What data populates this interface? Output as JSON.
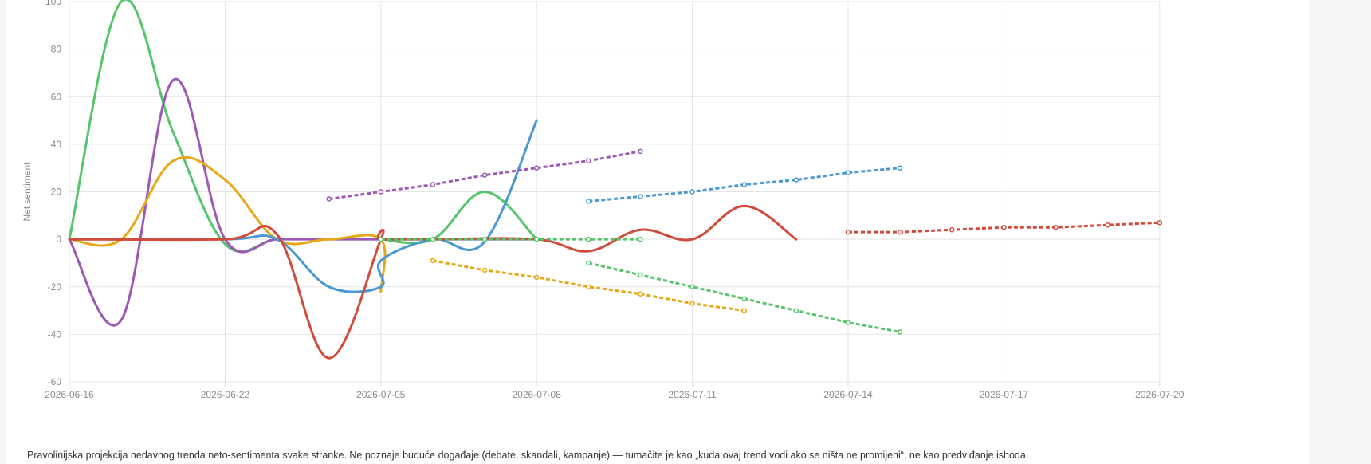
{
  "chart_data": {
    "type": "line",
    "title": "",
    "xlabel": "",
    "ylabel": "Net sentiment",
    "ylim": [
      -60,
      100
    ],
    "y_ticks": [
      -60,
      -40,
      -20,
      0,
      20,
      40,
      60,
      80,
      100
    ],
    "x_ticks": [
      "2026-06-16",
      "2026-06-22",
      "2026-07-05",
      "2026-07-08",
      "2026-07-11",
      "2026-07-14",
      "2026-07-17",
      "2026-07-20"
    ],
    "grid": true,
    "series": [
      {
        "color": "#55c46b",
        "style": "solid",
        "points": [
          [
            "2026-06-16",
            0
          ],
          [
            "2026-06-18",
            100
          ],
          [
            "2026-06-20",
            45
          ],
          [
            "2026-06-22",
            -2
          ],
          [
            "2026-06-23",
            0
          ],
          [
            "2026-06-24",
            0
          ],
          [
            "2026-06-25",
            0
          ],
          [
            "2026-07-05",
            0
          ],
          [
            "2026-07-06",
            0
          ],
          [
            "2026-07-07",
            20
          ],
          [
            "2026-07-08",
            0
          ]
        ]
      },
      {
        "color": "#9b59b6",
        "style": "solid",
        "points": [
          [
            "2026-06-16",
            0
          ],
          [
            "2026-06-18",
            -34
          ],
          [
            "2026-06-20",
            67
          ],
          [
            "2026-06-22",
            0
          ],
          [
            "2026-06-23",
            0
          ],
          [
            "2026-06-24",
            0
          ],
          [
            "2026-07-08",
            0
          ]
        ]
      },
      {
        "color": "#e6a817",
        "style": "solid",
        "points": [
          [
            "2026-06-16",
            0
          ],
          [
            "2026-06-18",
            0
          ],
          [
            "2026-06-20",
            33
          ],
          [
            "2026-06-22",
            25
          ],
          [
            "2026-06-23",
            0
          ],
          [
            "2026-06-24",
            0
          ],
          [
            "2026-06-25",
            0
          ],
          [
            "2026-07-05",
            -22
          ]
        ]
      },
      {
        "color": "#4a98d3",
        "style": "solid",
        "points": [
          [
            "2026-06-16",
            0
          ],
          [
            "2026-06-22",
            0
          ],
          [
            "2026-06-23",
            0
          ],
          [
            "2026-06-24",
            -20
          ],
          [
            "2026-06-25",
            -20
          ],
          [
            "2026-07-05",
            -9
          ],
          [
            "2026-07-06",
            0
          ],
          [
            "2026-07-07",
            -1
          ],
          [
            "2026-07-08",
            50
          ]
        ]
      },
      {
        "color": "#d14b3c",
        "style": "solid",
        "points": [
          [
            "2026-06-16",
            0
          ],
          [
            "2026-06-22",
            0
          ],
          [
            "2026-06-23",
            2
          ],
          [
            "2026-06-24",
            -50
          ],
          [
            "2026-06-25",
            0
          ],
          [
            "2026-07-05",
            0
          ],
          [
            "2026-07-06",
            0
          ],
          [
            "2026-07-08",
            0
          ],
          [
            "2026-07-09",
            -5
          ],
          [
            "2026-07-10",
            4
          ],
          [
            "2026-07-11",
            0
          ],
          [
            "2026-07-12",
            14
          ],
          [
            "2026-07-13",
            0
          ]
        ]
      },
      {
        "color": "#9b59b6",
        "style": "dashed",
        "points": [
          [
            "2026-06-24",
            17
          ],
          [
            "2026-07-05",
            20
          ],
          [
            "2026-07-06",
            23
          ],
          [
            "2026-07-07",
            27
          ],
          [
            "2026-07-08",
            30
          ],
          [
            "2026-07-09",
            33
          ],
          [
            "2026-07-10",
            37
          ]
        ]
      },
      {
        "color": "#e6a817",
        "style": "dashed",
        "points": [
          [
            "2026-07-06",
            -9
          ],
          [
            "2026-07-07",
            -13
          ],
          [
            "2026-07-08",
            -16
          ],
          [
            "2026-07-09",
            -20
          ],
          [
            "2026-07-10",
            -23
          ],
          [
            "2026-07-11",
            -27
          ],
          [
            "2026-07-12",
            -30
          ]
        ]
      },
      {
        "color": "#55c46b",
        "style": "dashed",
        "points": [
          [
            "2026-07-05",
            0
          ],
          [
            "2026-07-06",
            0
          ],
          [
            "2026-07-07",
            0
          ],
          [
            "2026-07-08",
            0
          ],
          [
            "2026-07-09",
            0
          ],
          [
            "2026-07-10",
            0
          ]
        ]
      },
      {
        "color": "#4a98d3",
        "style": "dashed",
        "points": [
          [
            "2026-07-09",
            16
          ],
          [
            "2026-07-10",
            18
          ],
          [
            "2026-07-11",
            20
          ],
          [
            "2026-07-12",
            23
          ],
          [
            "2026-07-13",
            25
          ],
          [
            "2026-07-14",
            28
          ],
          [
            "2026-07-15",
            30
          ]
        ]
      },
      {
        "color": "#55c46b",
        "style": "dashed",
        "points": [
          [
            "2026-07-09",
            -10
          ],
          [
            "2026-07-10",
            -15
          ],
          [
            "2026-07-11",
            -20
          ],
          [
            "2026-07-12",
            -25
          ],
          [
            "2026-07-13",
            -30
          ],
          [
            "2026-07-14",
            -35
          ],
          [
            "2026-07-15",
            -39
          ]
        ]
      },
      {
        "color": "#d14b3c",
        "style": "dashed",
        "points": [
          [
            "2026-07-14",
            3
          ],
          [
            "2026-07-15",
            3
          ],
          [
            "2026-07-16",
            4
          ],
          [
            "2026-07-17",
            5
          ],
          [
            "2026-07-18",
            5
          ],
          [
            "2026-07-19",
            6
          ],
          [
            "2026-07-20",
            7
          ]
        ]
      }
    ]
  },
  "note": "Pravolinijska projekcija nedavnog trenda neto-sentimenta svake stranke. Ne poznaje buduće događaje (debate, skandali, kampanje) — tumačite je kao „kuda ovaj trend vodi ako se ništa ne promijeni“, ne kao predviđanje ishoda."
}
